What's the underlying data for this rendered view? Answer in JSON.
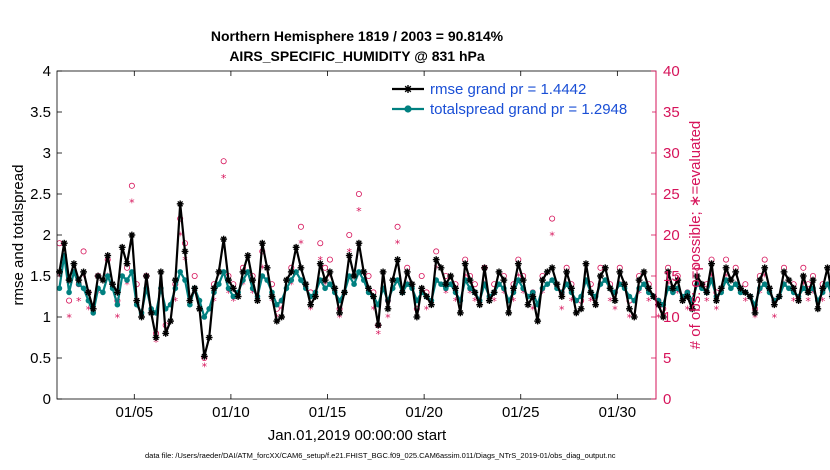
{
  "chart_data": {
    "type": "line",
    "title": "Northern Hemisphere 1819 / 2003 = 90.814%",
    "subtitle": "AIRS_SPECIFIC_HUMIDITY @ 831 hPa",
    "xlabel": "Jan.01,2019 00:00:00 start",
    "ylabel": "rmse and totalspread",
    "ylabel_right": "# of obs: o=possible; ∗=evaluated",
    "footnote": "data file: /Users/raeder/DAI/ATM_forcXX/CAM6_setup/f.e21.FHIST_BGC.f09_025.CAM6assim.011/Diags_NTrS_2019-01/obs_diag_output.nc",
    "xlim": [
      1,
      32
    ],
    "ylim": [
      0,
      4
    ],
    "ylim_right": [
      0,
      40
    ],
    "x_ticks": [
      5,
      10,
      15,
      20,
      25,
      30
    ],
    "x_tick_labels": [
      "01/05",
      "01/10",
      "01/15",
      "01/20",
      "01/25",
      "01/30"
    ],
    "y_ticks": [
      0,
      0.5,
      1,
      1.5,
      2,
      2.5,
      3,
      3.5,
      4
    ],
    "y_tick_labels": [
      "0",
      "0.5",
      "1",
      "1.5",
      "2",
      "2.5",
      "3",
      "3.5",
      "4"
    ],
    "y_ticks_right": [
      0,
      5,
      10,
      15,
      20,
      25,
      30,
      35,
      40
    ],
    "y_tick_labels_right": [
      "0",
      "5",
      "10",
      "15",
      "20",
      "25",
      "30",
      "35",
      "40"
    ],
    "legend_position": "top-right",
    "x_start": 1.125,
    "x_step": 0.25,
    "series": [
      {
        "name": "rmse grand pr = 1.4442",
        "color": "#000000",
        "marker": "asterisk",
        "values": [
          1.55,
          1.9,
          1.45,
          1.65,
          1.45,
          1.55,
          1.3,
          1.1,
          1.5,
          1.45,
          1.75,
          1.4,
          1.3,
          1.85,
          1.65,
          2.0,
          1.2,
          1.0,
          1.5,
          1.05,
          0.75,
          1.55,
          0.8,
          0.95,
          1.45,
          2.38,
          1.8,
          1.2,
          1.35,
          1.1,
          0.52,
          0.75,
          1.35,
          1.55,
          1.95,
          1.45,
          1.35,
          1.25,
          1.55,
          1.75,
          1.45,
          1.2,
          1.9,
          1.6,
          1.25,
          0.95,
          1.0,
          1.45,
          1.55,
          1.85,
          1.6,
          1.4,
          1.15,
          1.25,
          1.65,
          1.45,
          1.55,
          1.35,
          1.05,
          1.3,
          1.75,
          1.5,
          1.9,
          1.55,
          1.35,
          1.25,
          0.9,
          1.55,
          1.1,
          1.45,
          1.7,
          1.3,
          1.55,
          1.4,
          1.0,
          1.35,
          1.25,
          1.15,
          1.7,
          1.6,
          1.4,
          1.5,
          1.35,
          1.05,
          1.65,
          1.45,
          1.3,
          1.15,
          1.6,
          1.2,
          1.3,
          1.55,
          1.45,
          1.05,
          1.35,
          1.65,
          1.45,
          1.15,
          1.25,
          0.95,
          1.45,
          1.55,
          1.6,
          1.4,
          1.25,
          1.55,
          1.35,
          1.05,
          1.1,
          1.65,
          1.3,
          1.15,
          1.5,
          1.6,
          1.35,
          1.2,
          1.55,
          1.4,
          1.1,
          1.0,
          1.45,
          1.55,
          1.35,
          1.25,
          1.15,
          1.0,
          1.55,
          1.35,
          1.45,
          1.2,
          1.25,
          1.1,
          1.5,
          1.4,
          1.3,
          1.65,
          1.2,
          1.35,
          1.6,
          1.45,
          1.55,
          1.35,
          1.3,
          1.25,
          1.05,
          1.45,
          1.6,
          1.35,
          1.15,
          1.25,
          1.55,
          1.45,
          1.35,
          1.2,
          1.5,
          1.3,
          1.45,
          1.1,
          1.35,
          1.6,
          1.25,
          1.45,
          1.3,
          1.2,
          1.5,
          1.35,
          1.45,
          1.3,
          1.55,
          1.4,
          1.25,
          1.15,
          1.45,
          1.6,
          1.35,
          1.25,
          1.5,
          1.45,
          1.3,
          1.2,
          1.4,
          1.55,
          1.3,
          1.45,
          1.35,
          1.25,
          1.5,
          1.4,
          1.3,
          1.45,
          1.35,
          1.2,
          1.45,
          1.3,
          1.5,
          1.25,
          1.35,
          1.45,
          1.2,
          1.3,
          1.5,
          1.4,
          1.35,
          1.25,
          1.45,
          1.4,
          1.3,
          1.55,
          1.35,
          1.25,
          1.5,
          1.4,
          1.3,
          1.35,
          1.45,
          1.3,
          1.35,
          1.4,
          1.5,
          1.3,
          1.35,
          1.45,
          1.4,
          1.3,
          1.5,
          1.35
        ]
      },
      {
        "name": "totalspread grand pr = 1.2948",
        "color": "#008080",
        "marker": "dot",
        "values": [
          1.35,
          1.75,
          1.3,
          1.55,
          1.4,
          1.35,
          1.2,
          1.05,
          1.35,
          1.3,
          1.5,
          1.35,
          1.15,
          1.5,
          1.45,
          1.55,
          1.15,
          1.05,
          1.35,
          1.1,
          1.05,
          1.35,
          1.1,
          1.15,
          1.35,
          1.55,
          1.45,
          1.15,
          1.35,
          1.2,
          1.0,
          1.1,
          1.3,
          1.4,
          1.55,
          1.35,
          1.25,
          1.3,
          1.45,
          1.55,
          1.35,
          1.25,
          1.5,
          1.45,
          1.3,
          1.15,
          1.2,
          1.35,
          1.45,
          1.55,
          1.45,
          1.35,
          1.25,
          1.3,
          1.45,
          1.35,
          1.4,
          1.3,
          1.2,
          1.3,
          1.5,
          1.4,
          1.55,
          1.45,
          1.3,
          1.25,
          1.15,
          1.35,
          1.2,
          1.35,
          1.45,
          1.3,
          1.4,
          1.35,
          1.2,
          1.3,
          1.25,
          1.2,
          1.45,
          1.4,
          1.35,
          1.4,
          1.3,
          1.2,
          1.45,
          1.35,
          1.3,
          1.2,
          1.4,
          1.25,
          1.3,
          1.4,
          1.35,
          1.2,
          1.3,
          1.45,
          1.35,
          1.25,
          1.3,
          1.15,
          1.35,
          1.4,
          1.45,
          1.35,
          1.3,
          1.4,
          1.3,
          1.2,
          1.25,
          1.45,
          1.3,
          1.25,
          1.4,
          1.45,
          1.35,
          1.3,
          1.4,
          1.35,
          1.25,
          1.2,
          1.35,
          1.4,
          1.3,
          1.25,
          1.2,
          1.15,
          1.35,
          1.3,
          1.35,
          1.25,
          1.3,
          1.2,
          1.4,
          1.35,
          1.3,
          1.45,
          1.25,
          1.3,
          1.45,
          1.35,
          1.4,
          1.3,
          1.3,
          1.25,
          1.15,
          1.35,
          1.4,
          1.3,
          1.2,
          1.25,
          1.4,
          1.35,
          1.3,
          1.25,
          1.35,
          1.3,
          1.35,
          1.2,
          1.3,
          1.4,
          1.25,
          1.35,
          1.3,
          1.25,
          1.35,
          1.3,
          1.35,
          1.3,
          1.4,
          1.35,
          1.25,
          1.2,
          1.35,
          1.4,
          1.3,
          1.25,
          1.35,
          1.35,
          1.3,
          1.25,
          1.3,
          1.4,
          1.3,
          1.35,
          1.3,
          1.25,
          1.35,
          1.3,
          1.3,
          1.35,
          1.3,
          1.25,
          1.35,
          1.3,
          1.35,
          1.25,
          1.3,
          1.35,
          1.25,
          1.3,
          1.35,
          1.3,
          1.3,
          1.25,
          1.35,
          1.3,
          1.3,
          1.4,
          1.3,
          1.25,
          1.35,
          1.3,
          1.3,
          1.3,
          1.35,
          1.3,
          1.3,
          1.3,
          1.35,
          1.3,
          1.3,
          1.35,
          1.3,
          1.3,
          1.35,
          1.3
        ]
      }
    ],
    "obs_count": {
      "axis": "right",
      "color": "#d6135a",
      "possible": [
        19,
        16,
        12,
        17,
        14,
        18,
        13,
        9,
        15,
        11,
        17,
        14,
        12,
        19,
        16,
        26,
        14,
        9,
        15,
        10,
        8,
        16,
        9,
        11,
        14,
        22,
        19,
        13,
        15,
        12,
        5,
        8,
        14,
        16,
        29,
        15,
        14,
        13,
        16,
        19,
        15,
        12,
        18,
        17,
        14,
        11,
        12,
        15,
        16,
        27,
        21,
        15,
        13,
        14,
        19,
        16,
        17,
        15,
        11,
        14,
        20,
        16,
        25,
        17,
        15,
        13,
        9,
        16,
        12,
        15,
        21,
        14,
        16,
        15,
        11,
        15,
        13,
        12,
        18,
        17,
        15,
        16,
        14,
        11,
        17,
        15,
        14,
        12,
        16,
        13,
        14,
        16,
        15,
        11,
        14,
        17,
        15,
        12,
        13,
        10,
        15,
        16,
        22,
        15,
        13,
        16,
        14,
        11,
        12,
        17,
        14,
        12,
        16,
        17,
        14,
        13,
        16,
        15,
        12,
        11,
        15,
        16,
        14,
        13,
        12,
        11,
        16,
        14,
        15,
        13,
        13,
        12,
        16,
        15,
        14,
        17,
        13,
        14,
        17,
        15,
        16,
        14,
        14,
        13,
        11,
        15,
        17,
        14,
        12,
        13,
        16,
        15,
        14,
        13,
        16,
        14,
        15,
        12,
        14,
        17,
        13,
        15,
        14,
        13,
        16,
        14,
        15,
        14,
        16,
        15,
        13,
        12,
        15,
        17,
        14,
        13,
        16,
        15,
        14,
        13,
        15,
        16,
        14,
        15,
        14,
        13,
        16,
        15,
        14,
        15,
        14,
        13,
        15,
        14,
        16,
        13,
        14,
        15,
        13,
        14,
        16,
        15,
        14,
        13,
        15,
        15,
        14,
        16,
        14,
        13,
        16,
        15,
        14,
        14,
        15,
        14,
        14,
        15,
        16,
        14,
        14,
        15,
        15,
        14,
        16,
        14
      ],
      "evaluated": [
        15,
        13,
        10,
        14,
        12,
        15,
        11,
        8,
        13,
        10,
        15,
        12,
        10,
        16,
        14,
        24,
        12,
        8,
        13,
        9,
        7,
        14,
        8,
        10,
        12,
        20,
        17,
        11,
        13,
        10,
        4,
        7,
        12,
        14,
        27,
        13,
        12,
        11,
        14,
        17,
        13,
        10,
        16,
        15,
        12,
        10,
        11,
        13,
        14,
        25,
        19,
        13,
        11,
        12,
        17,
        14,
        15,
        13,
        10,
        12,
        18,
        14,
        23,
        15,
        13,
        11,
        8,
        14,
        10,
        13,
        19,
        12,
        14,
        13,
        10,
        13,
        11,
        10,
        16,
        15,
        13,
        14,
        12,
        10,
        15,
        13,
        12,
        10,
        14,
        11,
        12,
        14,
        13,
        10,
        12,
        15,
        13,
        10,
        11,
        9,
        13,
        14,
        20,
        13,
        11,
        14,
        12,
        10,
        11,
        15,
        12,
        10,
        14,
        15,
        12,
        11,
        14,
        13,
        10,
        10,
        13,
        14,
        12,
        11,
        10,
        10,
        14,
        12,
        13,
        11,
        11,
        10,
        14,
        13,
        12,
        15,
        11,
        12,
        15,
        13,
        14,
        12,
        12,
        11,
        10,
        13,
        15,
        12,
        10,
        11,
        14,
        13,
        12,
        11,
        14,
        12,
        13,
        10,
        12,
        15,
        11,
        13,
        12,
        11,
        14,
        12,
        13,
        12,
        14,
        13,
        11,
        10,
        13,
        15,
        12,
        11,
        14,
        13,
        12,
        11,
        13,
        14,
        12,
        13,
        12,
        11,
        14,
        13,
        12,
        13,
        12,
        11,
        13,
        12,
        14,
        11,
        12,
        13,
        11,
        12,
        14,
        13,
        12,
        11,
        13,
        13,
        12,
        14,
        12,
        11,
        14,
        13,
        12,
        12,
        13,
        12,
        12,
        13,
        14,
        12,
        12,
        13,
        13,
        12,
        14,
        12
      ]
    }
  },
  "legend": {
    "rmse_label": "rmse grand pr = 1.4442",
    "spread_label": "totalspread grand pr = 1.2948"
  },
  "colors": {
    "axis": "#000000",
    "right_axis": "#d6135a",
    "legend_text": "#1a4fd6",
    "rmse": "#000000",
    "spread": "#008080"
  }
}
